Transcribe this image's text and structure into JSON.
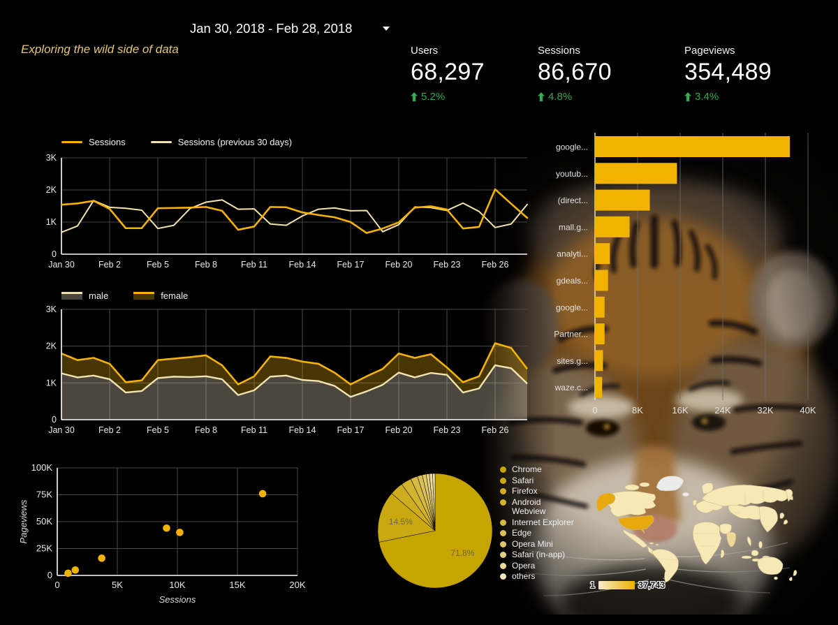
{
  "header": {
    "date_range": "Jan 30, 2018 - Feb 28, 2018",
    "tagline": "Exploring the wild side of data",
    "kpis": [
      {
        "label": "Users",
        "value": "68,297",
        "delta": "5.2%"
      },
      {
        "label": "Sessions",
        "value": "86,670",
        "delta": "4.8%"
      },
      {
        "label": "Pageviews",
        "value": "354,489",
        "delta": "3.4%"
      }
    ]
  },
  "colors": {
    "accent_gold": "#F5B300",
    "cream": "#F4E3AE",
    "kpi_green": "#34A853",
    "tagline_gold": "#E4C770"
  },
  "map": {
    "legend_min": "1",
    "legend_max": "37,743",
    "gradient_from": "#F8ECCC",
    "gradient_to": "#EBB000",
    "base_color": "#F8E8B6",
    "mid_color": "#F0D995",
    "highlight_color": "#E8A90E",
    "nodata_color": "#EBEBEB"
  },
  "chart_data": [
    {
      "id": "sessions_line",
      "type": "line",
      "x": [
        "Jan 30",
        "Jan 31",
        "Feb 1",
        "Feb 2",
        "Feb 3",
        "Feb 4",
        "Feb 5",
        "Feb 6",
        "Feb 7",
        "Feb 8",
        "Feb 9",
        "Feb 10",
        "Feb 11",
        "Feb 12",
        "Feb 13",
        "Feb 14",
        "Feb 15",
        "Feb 16",
        "Feb 17",
        "Feb 18",
        "Feb 19",
        "Feb 20",
        "Feb 21",
        "Feb 22",
        "Feb 23",
        "Feb 24",
        "Feb 25",
        "Feb 26",
        "Feb 27",
        "Feb 28"
      ],
      "x_tick_labels": [
        "Jan 30",
        "Feb 2",
        "Feb 5",
        "Feb 8",
        "Feb 11",
        "Feb 14",
        "Feb 17",
        "Feb 20",
        "Feb 23",
        "Feb 26"
      ],
      "y_ticks": [
        "0",
        "1K",
        "2K",
        "3K"
      ],
      "ylim": [
        0,
        3000
      ],
      "series": [
        {
          "name": "Sessions",
          "color": "#F5B300",
          "values": [
            1540,
            1580,
            1660,
            1410,
            810,
            810,
            1430,
            1440,
            1450,
            1470,
            1350,
            760,
            860,
            1470,
            1460,
            1300,
            1220,
            1150,
            1000,
            660,
            800,
            990,
            1450,
            1490,
            1390,
            800,
            850,
            2020,
            1570,
            1130
          ]
        },
        {
          "name": "Sessions (previous 30 days)",
          "color": "#F4E3AE",
          "values": [
            680,
            880,
            1670,
            1460,
            1430,
            1370,
            800,
            900,
            1420,
            1620,
            1690,
            1400,
            1410,
            940,
            900,
            1190,
            1400,
            1440,
            1350,
            1360,
            700,
            920,
            1470,
            1450,
            1360,
            1590,
            1330,
            830,
            940,
            1550
          ]
        }
      ]
    },
    {
      "id": "gender_area",
      "type": "area",
      "stacked": true,
      "x_tick_labels": [
        "Jan 30",
        "Feb 2",
        "Feb 5",
        "Feb 8",
        "Feb 11",
        "Feb 14",
        "Feb 17",
        "Feb 20",
        "Feb 23",
        "Feb 26"
      ],
      "y_ticks": [
        "0",
        "1K",
        "2K",
        "3K"
      ],
      "ylim": [
        0,
        3000
      ],
      "series": [
        {
          "name": "male",
          "line_color": "#F2E3B0",
          "fill_color": "rgba(232,222,192,0.32)",
          "values": [
            1260,
            1150,
            1200,
            1100,
            740,
            780,
            1130,
            1170,
            1160,
            1180,
            1100,
            670,
            800,
            1170,
            1200,
            1080,
            1050,
            920,
            620,
            770,
            950,
            1280,
            1150,
            1270,
            1220,
            740,
            850,
            1480,
            1400,
            980
          ]
        },
        {
          "name": "female",
          "line_color": "#F5B300",
          "fill_color": "rgba(238,176,12,0.30)",
          "values": [
            540,
            470,
            480,
            420,
            280,
            290,
            490,
            490,
            540,
            570,
            380,
            290,
            380,
            550,
            480,
            500,
            470,
            360,
            340,
            410,
            430,
            520,
            530,
            510,
            200,
            280,
            330,
            600,
            550,
            400
          ]
        }
      ]
    },
    {
      "id": "source_bar",
      "type": "bar",
      "orientation": "horizontal",
      "categories": [
        "google...",
        "youtub...",
        "(direct...",
        "mall.g...",
        "analyti...",
        "gdeals...",
        "google...",
        "Partner...",
        "sites.g...",
        "waze.c..."
      ],
      "values": [
        36600,
        15400,
        10300,
        6500,
        2800,
        2450,
        1800,
        1800,
        1500,
        1350
      ],
      "color": "#F2B200",
      "x_ticks": [
        "0",
        "8K",
        "16K",
        "24K",
        "32K",
        "40K"
      ],
      "xlim": [
        0,
        44000
      ]
    },
    {
      "id": "pageviews_scatter",
      "type": "scatter",
      "xlabel": "Sessions",
      "ylabel": "Pageviews",
      "color": "#F2B200",
      "xlim": [
        0,
        20000
      ],
      "ylim": [
        0,
        100000
      ],
      "x_ticks": [
        "0",
        "5K",
        "10K",
        "15K",
        "20K"
      ],
      "y_ticks": [
        "0",
        "25K",
        "50K",
        "75K",
        "100K"
      ],
      "points": [
        [
          900,
          2000
        ],
        [
          1500,
          5000
        ],
        [
          3700,
          16000
        ],
        [
          9100,
          44000
        ],
        [
          10200,
          40000
        ],
        [
          17100,
          76000
        ]
      ]
    },
    {
      "id": "browser_pie",
      "type": "pie",
      "labels": [
        "Chrome",
        "Safari",
        "Firefox",
        "Android Webview",
        "Internet Explorer",
        "Edge",
        "Opera Mini",
        "Safari (in-app)",
        "Opera",
        "others"
      ],
      "values": [
        71.8,
        14.5,
        3.8,
        2.9,
        2.0,
        1.4,
        1.1,
        0.9,
        0.9,
        0.7
      ],
      "colors": [
        "#C7A500",
        "#C9A90F",
        "#CEAE1E",
        "#D2B42F",
        "#D6BA41",
        "#DAC055",
        "#DFC76A",
        "#E4CF81",
        "#EAD99B",
        "#F2E6BC"
      ],
      "label_threshold": 10,
      "label_color": "#6E6443"
    },
    {
      "id": "geo_map",
      "type": "heatmap",
      "subtype": "geo-choropleth",
      "highlight_country": "United States",
      "legend_min": 1,
      "legend_max": 37743
    }
  ]
}
